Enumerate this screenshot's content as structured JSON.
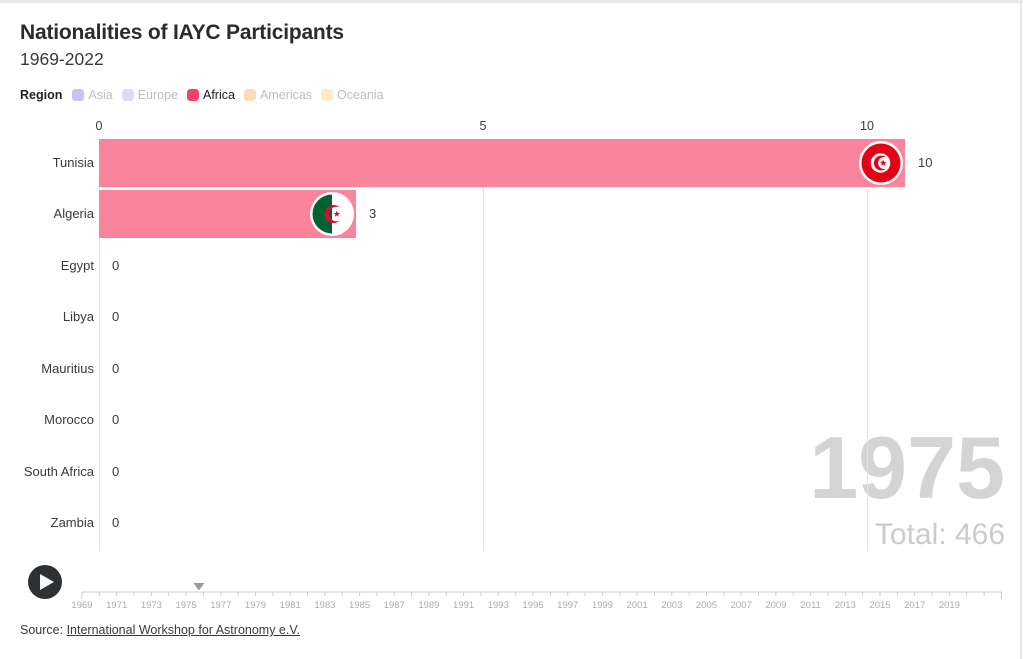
{
  "header": {
    "title": "Nationalities of IAYC Participants",
    "subtitle": "1969-2022"
  },
  "legend": {
    "label": "Region",
    "items": [
      {
        "label": "Asia",
        "color": "#c9c2f0",
        "active": false
      },
      {
        "label": "Europe",
        "color": "#ded9f6",
        "active": false
      },
      {
        "label": "Africa",
        "color": "#f7426a",
        "active": true
      },
      {
        "label": "Americas",
        "color": "#fbddbb",
        "active": false
      },
      {
        "label": "Oceania",
        "color": "#fbedc4",
        "active": false
      }
    ]
  },
  "chart_data": {
    "type": "bar",
    "orientation": "horizontal",
    "title": "Nationalities of IAYC Participants",
    "subtitle": "1969-2022",
    "region_filter": "Africa",
    "categories": [
      "Tunisia",
      "Algeria",
      "Egypt",
      "Libya",
      "Mauritius",
      "Morocco",
      "South Africa",
      "Zambia"
    ],
    "values": [
      10,
      3,
      0,
      0,
      0,
      0,
      0,
      0
    ],
    "bar_display_values": [
      10.49,
      3.35,
      0,
      0,
      0,
      0,
      0,
      0
    ],
    "flags": [
      "tunisia",
      "algeria",
      null,
      null,
      null,
      null,
      null,
      null
    ],
    "axis_ticks": [
      "0",
      "5",
      "10"
    ],
    "xlim": [
      0,
      12
    ],
    "grid": true,
    "bar_color": "#f9849c",
    "year": "1975",
    "total_label": "Total: 466",
    "flag_colors": {
      "tunisia_red": "#e70013",
      "algeria_green": "#006233",
      "algeria_red": "#d21034",
      "ring_white": "#ffffff"
    }
  },
  "timeline": {
    "start_year": 1969,
    "end_year": 2022,
    "first_label": 1969,
    "last_label": 2019,
    "label_step": 2,
    "position_year": 1975.74,
    "track_color": "#cccccc",
    "label_color": "#ababab",
    "marker_color": "#9a9a9a"
  },
  "source": {
    "prefix": "Source: ",
    "link": "International Workshop for Astronomy e.V."
  }
}
